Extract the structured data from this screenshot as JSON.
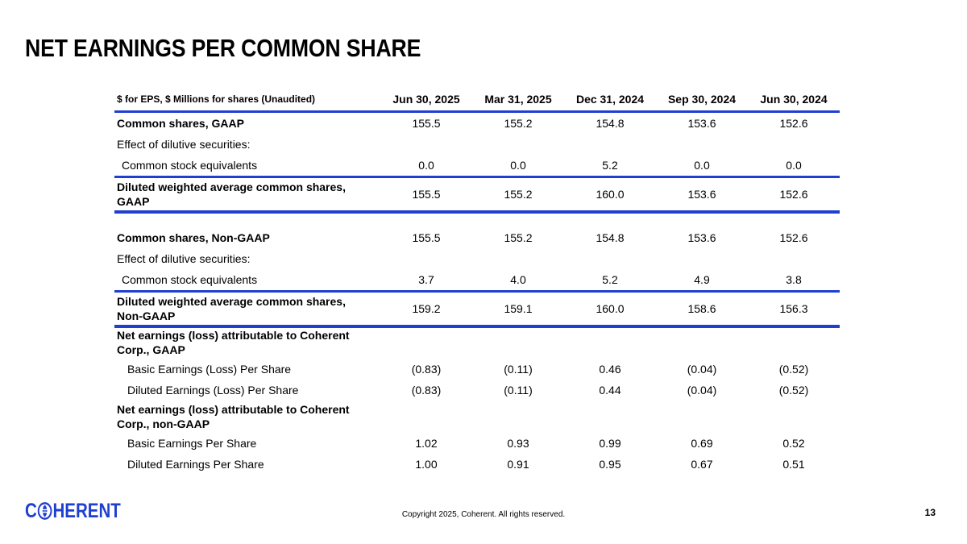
{
  "title": "NET EARNINGS PER COMMON SHARE",
  "table": {
    "header_label": "$ for EPS, $ Millions for shares (Unaudited)",
    "columns": [
      "Jun 30, 2025",
      "Mar 31, 2025",
      "Dec 31, 2024",
      "Sep 30, 2024",
      "Jun 30, 2024"
    ],
    "gaap": {
      "common_shares": {
        "label": "Common shares, GAAP",
        "values": [
          "155.5",
          "155.2",
          "154.8",
          "153.6",
          "152.6"
        ]
      },
      "dilutive_label": "Effect of dilutive securities:",
      "stock_equivalents": {
        "label": "Common stock equivalents",
        "values": [
          "0.0",
          "0.0",
          "5.2",
          "0.0",
          "0.0"
        ]
      },
      "diluted_total": {
        "label_line1": "Diluted weighted average common shares,",
        "label_line2": "GAAP",
        "values": [
          "155.5",
          "155.2",
          "160.0",
          "153.6",
          "152.6"
        ]
      }
    },
    "non_gaap": {
      "common_shares": {
        "label": "Common shares, Non-GAAP",
        "values": [
          "155.5",
          "155.2",
          "154.8",
          "153.6",
          "152.6"
        ]
      },
      "dilutive_label": "Effect of dilutive securities:",
      "stock_equivalents": {
        "label": "Common stock equivalents",
        "values": [
          "3.7",
          "4.0",
          "5.2",
          "4.9",
          "3.8"
        ]
      },
      "diluted_total": {
        "label_line1": "Diluted weighted average common shares,",
        "label_line2": "Non-GAAP",
        "values": [
          "159.2",
          "159.1",
          "160.0",
          "158.6",
          "156.3"
        ]
      }
    },
    "earnings_gaap": {
      "label_line1": "Net earnings (loss) attributable to Coherent",
      "label_line2": "Corp., GAAP",
      "basic": {
        "label": "Basic Earnings (Loss) Per Share",
        "values": [
          "(0.83)",
          "(0.11)",
          "0.46",
          "(0.04)",
          "(0.52)"
        ]
      },
      "diluted": {
        "label": "Diluted Earnings (Loss) Per Share",
        "values": [
          "(0.83)",
          "(0.11)",
          "0.44",
          "(0.04)",
          "(0.52)"
        ]
      }
    },
    "earnings_non_gaap": {
      "label_line1": "Net earnings (loss) attributable to Coherent",
      "label_line2": "Corp., non-GAAP",
      "basic": {
        "label": "Basic Earnings Per Share",
        "values": [
          "1.02",
          "0.93",
          "0.99",
          "0.69",
          "0.52"
        ]
      },
      "diluted": {
        "label": "Diluted Earnings Per Share",
        "values": [
          "1.00",
          "0.91",
          "0.95",
          "0.67",
          "0.51"
        ]
      }
    }
  },
  "footer": {
    "logo_text_start": "C",
    "logo_text_end": "HERENT",
    "logo_icon": "globe-icon",
    "copyright": "Copyright 2025, Coherent. All rights reserved.",
    "page_number": "13"
  },
  "colors": {
    "accent": "#1f3fd1",
    "text": "#000000",
    "background": "#ffffff"
  }
}
